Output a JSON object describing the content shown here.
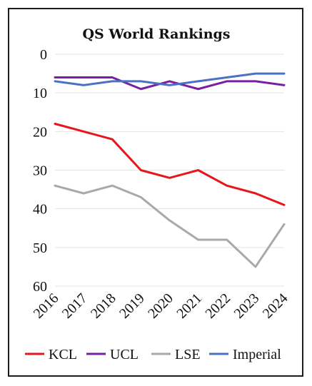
{
  "chart_data": {
    "type": "line",
    "title": "QS World Rankings",
    "xlabel": "",
    "ylabel": "",
    "categories": [
      "2016",
      "2017",
      "2018",
      "2019",
      "2020",
      "2021",
      "2022",
      "2023",
      "2024"
    ],
    "ylim": [
      0,
      60
    ],
    "y_inverted": true,
    "yticks": [
      "0",
      "10",
      "20",
      "30",
      "40",
      "50",
      "60"
    ],
    "grid": "horizontal",
    "legend_position": "bottom",
    "series": [
      {
        "name": "KCL",
        "color": "#e8151b",
        "values": [
          18,
          20,
          22,
          30,
          32,
          30,
          34,
          36,
          39
        ]
      },
      {
        "name": "UCL",
        "color": "#7a1fa2",
        "values": [
          6,
          6,
          6,
          9,
          7,
          9,
          7,
          7,
          8
        ]
      },
      {
        "name": "LSE",
        "color": "#a9a9a9",
        "values": [
          34,
          36,
          34,
          37,
          43,
          48,
          48,
          55,
          44
        ]
      },
      {
        "name": "Imperial",
        "color": "#4a72c4",
        "values": [
          7,
          8,
          7,
          7,
          8,
          7,
          6,
          5,
          5
        ]
      }
    ]
  }
}
